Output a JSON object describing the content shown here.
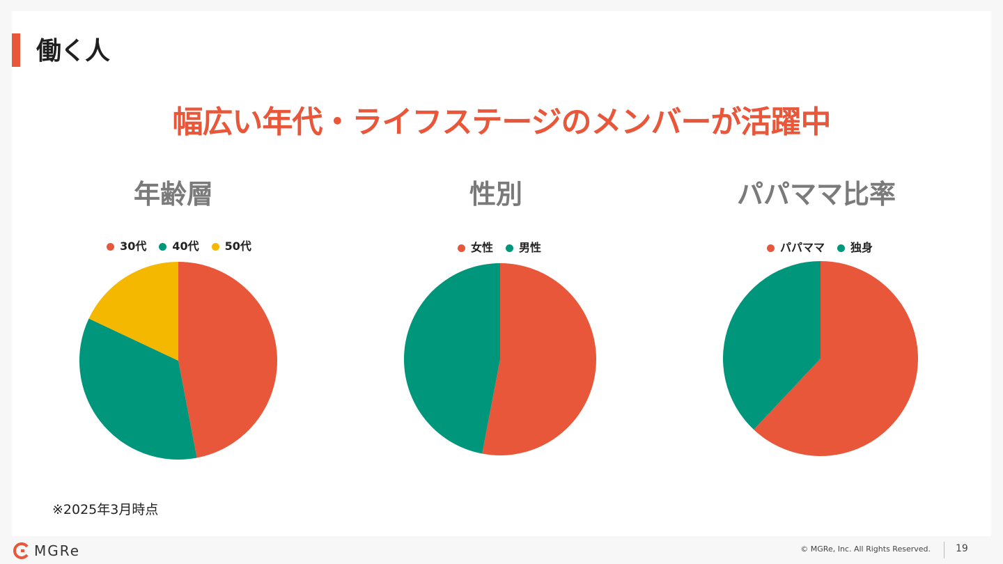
{
  "section": {
    "title": "働く人",
    "accent": "#e8573a"
  },
  "headline": {
    "text": "幅広い年代・ライフステージのメンバーが活躍中",
    "color": "#e8573a"
  },
  "chart_data": [
    {
      "type": "pie",
      "title": "年齢層",
      "categories": [
        "30代",
        "40代",
        "50代"
      ],
      "values": [
        47,
        35,
        18
      ],
      "colors": [
        "#e8573a",
        "#00967c",
        "#f5b800"
      ],
      "legend": "top"
    },
    {
      "type": "pie",
      "title": "性別",
      "categories": [
        "女性",
        "男性"
      ],
      "values": [
        53,
        47
      ],
      "colors": [
        "#e8573a",
        "#00967c"
      ],
      "legend": "top"
    },
    {
      "type": "pie",
      "title": "パパママ比率",
      "categories": [
        "パパママ",
        "独身"
      ],
      "values": [
        62,
        38
      ],
      "colors": [
        "#e8573a",
        "#00967c"
      ],
      "legend": "top"
    }
  ],
  "note": "※2025年3月時点",
  "footer": {
    "logo_text": "MGRe",
    "copyright": "© MGRe, Inc. All Rights Reserved.",
    "page_number": "19"
  }
}
